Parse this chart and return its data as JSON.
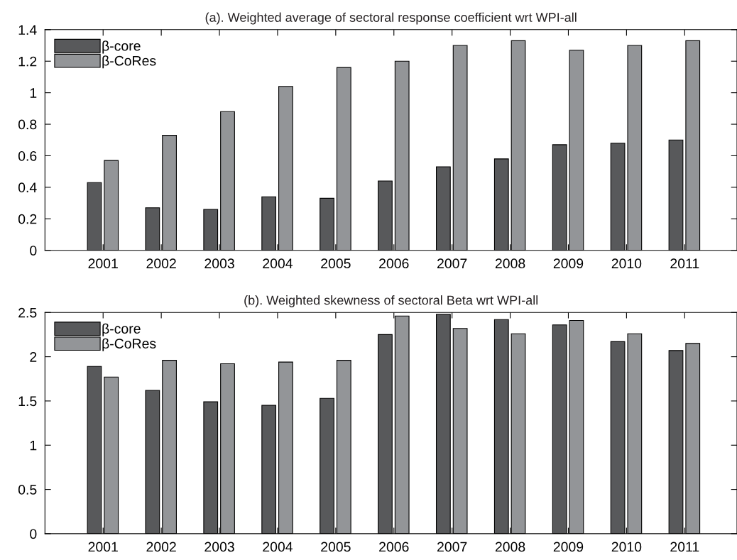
{
  "chart_data": [
    {
      "type": "bar",
      "title": "(a). Weighted average of sectoral response coefficient wrt WPI-all",
      "categories": [
        "2001",
        "2002",
        "2003",
        "2004",
        "2005",
        "2006",
        "2007",
        "2008",
        "2009",
        "2010",
        "2011"
      ],
      "series": [
        {
          "name": "β-core",
          "color": "#58595b",
          "values": [
            0.43,
            0.27,
            0.26,
            0.34,
            0.33,
            0.44,
            0.53,
            0.58,
            0.67,
            0.68,
            0.7
          ]
        },
        {
          "name": "β-CoRes",
          "color": "#939598",
          "values": [
            0.57,
            0.73,
            0.88,
            1.04,
            1.16,
            1.2,
            1.3,
            1.33,
            1.27,
            1.3,
            1.33
          ]
        }
      ],
      "ylim": [
        0,
        1.4
      ],
      "yticks": [
        0,
        0.2,
        0.4,
        0.6,
        0.8,
        1,
        1.2,
        1.4
      ],
      "legend": "top left",
      "grid": false
    },
    {
      "type": "bar",
      "title": "(b). Weighted skewness of sectoral Beta wrt WPI-all",
      "categories": [
        "2001",
        "2002",
        "2003",
        "2004",
        "2005",
        "2006",
        "2007",
        "2008",
        "2009",
        "2010",
        "2011"
      ],
      "series": [
        {
          "name": "β-core",
          "color": "#58595b",
          "values": [
            1.89,
            1.62,
            1.49,
            1.45,
            1.53,
            2.25,
            2.48,
            2.42,
            2.36,
            2.17,
            2.07
          ]
        },
        {
          "name": "β-CoRes",
          "color": "#939598",
          "values": [
            1.77,
            1.96,
            1.92,
            1.94,
            1.96,
            2.46,
            2.32,
            2.26,
            2.41,
            2.26,
            2.15
          ]
        }
      ],
      "ylim": [
        0,
        2.5
      ],
      "yticks": [
        0,
        0.5,
        1,
        1.5,
        2,
        2.5
      ],
      "legend": "top left",
      "grid": false
    }
  ]
}
